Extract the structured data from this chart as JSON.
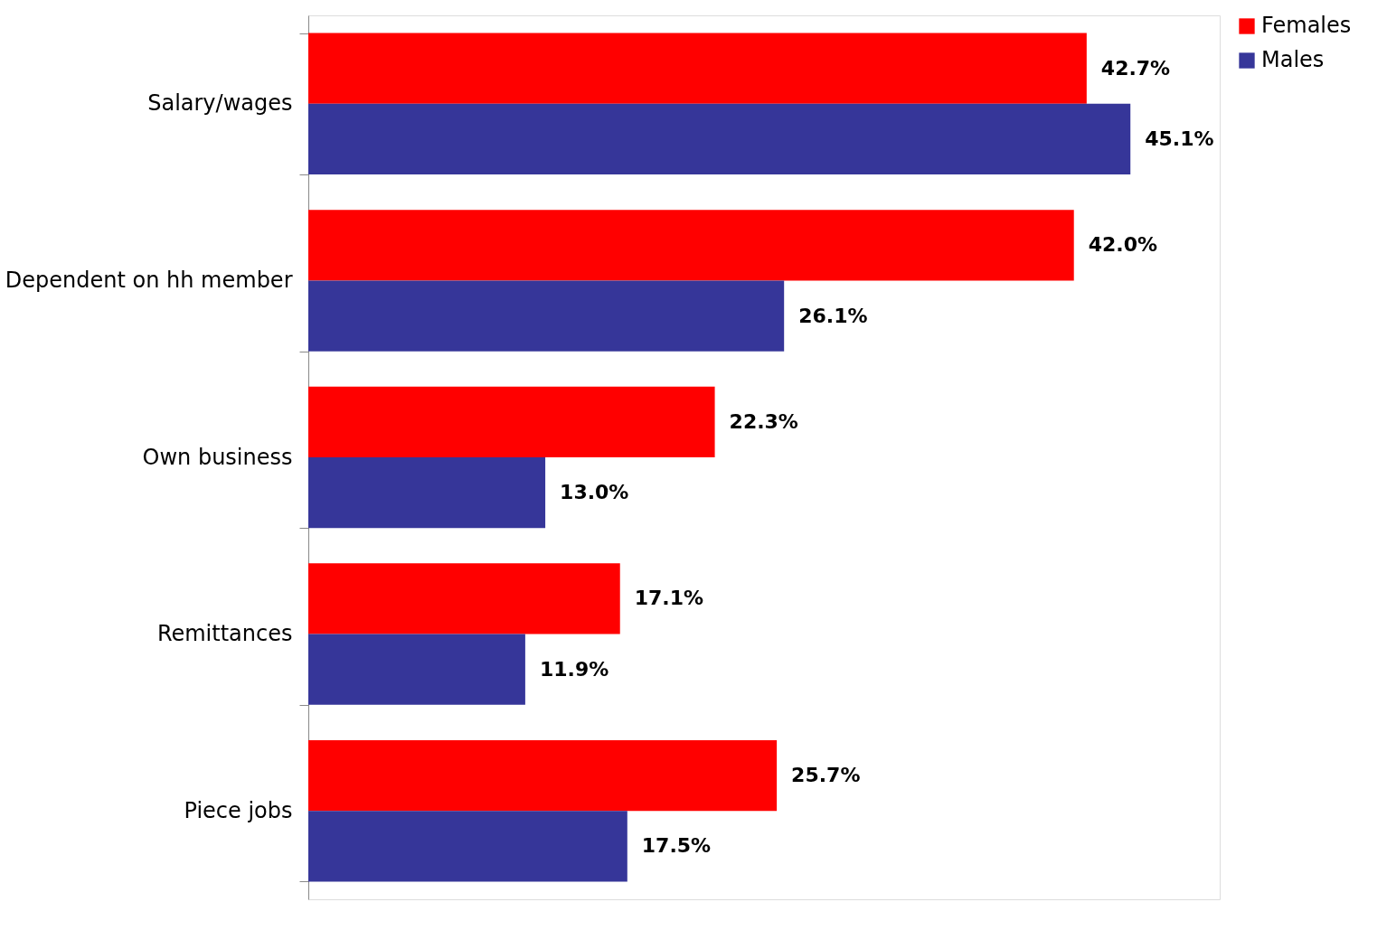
{
  "chart_data": {
    "type": "bar",
    "orientation": "horizontal",
    "categories": [
      "Salary/wages",
      "Dependent on hh member",
      "Own business",
      "Remittances",
      "Piece jobs"
    ],
    "series": [
      {
        "name": "Females",
        "color": "#ff0000",
        "values": [
          42.7,
          42.0,
          22.3,
          17.1,
          25.7
        ],
        "value_labels": [
          "42.7%",
          "42.0%",
          "22.3%",
          "17.1%",
          "25.7%"
        ]
      },
      {
        "name": "Males",
        "color": "#363699",
        "values": [
          45.1,
          26.1,
          13.0,
          11.9,
          17.5
        ],
        "value_labels": [
          "45.1%",
          "26.1%",
          "13.0%",
          "11.9%",
          "17.5%"
        ]
      }
    ],
    "legend": "right"
  }
}
